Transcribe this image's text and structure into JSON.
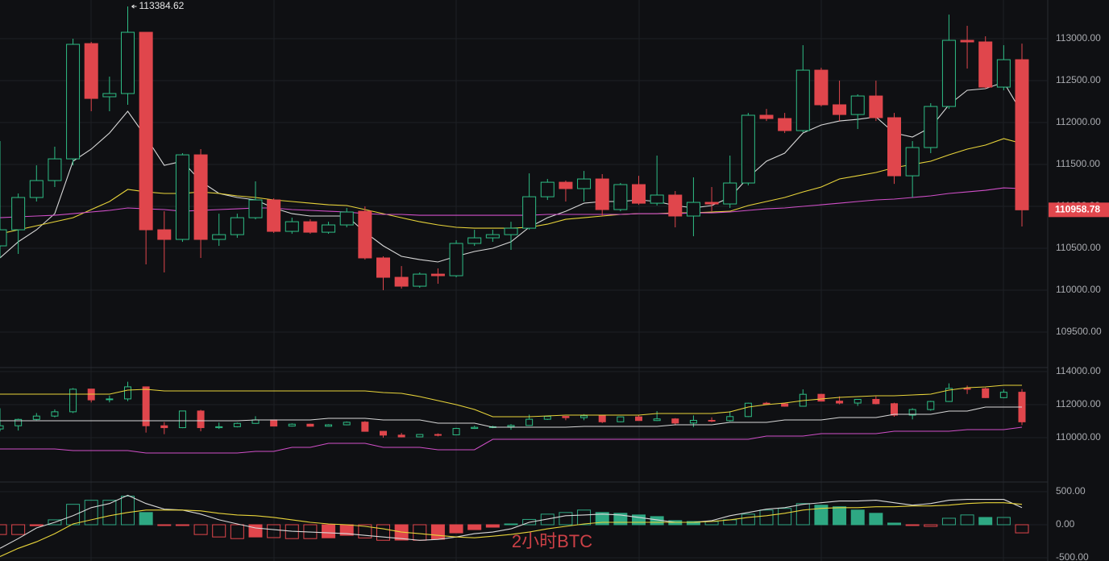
{
  "chart_data": [
    {
      "type": "candlestick",
      "up_color": "#2ebd85",
      "down_color": "#e0464c",
      "grid": true,
      "ylim": [
        109087,
        113462
      ],
      "yticks": [
        {
          "value": 109500,
          "label": "109500.00"
        },
        {
          "value": 110000,
          "label": "110000.00"
        },
        {
          "value": 110500,
          "label": "110500.00"
        },
        {
          "value": 111000,
          "label": "111000.00"
        },
        {
          "value": 111500,
          "label": "111500.00"
        },
        {
          "value": 112000,
          "label": "112000.00"
        },
        {
          "value": 112500,
          "label": "112500.00"
        },
        {
          "value": 113000,
          "label": "113000.00"
        }
      ],
      "open": [
        110529,
        110721,
        111106,
        111308,
        111567,
        112942,
        112308,
        112346,
        113077,
        110721,
        110606,
        111615,
        110606,
        110663,
        110865,
        111077,
        110702,
        110817,
        110692,
        110779,
        110942,
        110385,
        110154,
        110048,
        110192,
        110173,
        110558,
        110625,
        110663,
        110740,
        111115,
        111288,
        111212,
        111327,
        110962,
        111260,
        111038,
        111135,
        110885,
        111048,
        111029,
        111279,
        112087,
        112048,
        111904,
        112625,
        112212,
        112096,
        112317,
        112058,
        111365,
        111702,
        112192,
        112981,
        112962,
        112423,
        112750
      ],
      "high": [
        111779,
        111154,
        111490,
        111712,
        113000,
        112962,
        112548,
        113384.62,
        113077,
        110942,
        111635,
        111683,
        110913,
        110913,
        111298,
        111096,
        110865,
        110846,
        110817,
        110981,
        111000,
        110404,
        110288,
        110212,
        110260,
        110596,
        110721,
        110721,
        110817,
        111394,
        111327,
        111308,
        111423,
        111385,
        111279,
        111365,
        111606,
        111183,
        111346,
        111231,
        111606,
        112115,
        112163,
        112115,
        112923,
        112654,
        112500,
        112337,
        112500,
        112115,
        111779,
        112231,
        113288,
        113154,
        113029,
        112923,
        112942
      ],
      "low": [
        110385,
        110433,
        111058,
        111231,
        111490,
        112135,
        112135,
        112212,
        110308,
        110212,
        110577,
        110385,
        110529,
        110625,
        110846,
        110683,
        110673,
        110673,
        110673,
        110750,
        110365,
        110000,
        110019,
        110029,
        110077,
        110154,
        110529,
        110577,
        110481,
        110721,
        111077,
        111058,
        111058,
        110885,
        110942,
        111019,
        111010,
        110750,
        110644,
        110942,
        110981,
        111250,
        112019,
        111875,
        111885,
        112192,
        112019,
        111923,
        112019,
        111269,
        111106,
        111635,
        112163,
        112644,
        112404,
        112385,
        110760
      ],
      "close": [
        110721,
        111106,
        111308,
        111567,
        112933,
        112288,
        112346,
        113077,
        110721,
        110606,
        111615,
        110606,
        110663,
        110865,
        111077,
        110702,
        110817,
        110692,
        110779,
        110933,
        110385,
        110154,
        110048,
        110192,
        110173,
        110558,
        110625,
        110663,
        110740,
        111115,
        111288,
        111212,
        111327,
        110962,
        111260,
        111038,
        111135,
        110885,
        111048,
        111029,
        111279,
        112087,
        112048,
        111904,
        112625,
        112212,
        112096,
        112317,
        112058,
        111365,
        111702,
        112192,
        112981,
        112962,
        112423,
        112750,
        110958.78
      ],
      "ma_lines": [
        {
          "color": "#d8d8d8",
          "values": [
            110385,
            110577,
            110721,
            110913,
            111539,
            111683,
            111875,
            112135,
            111827,
            111490,
            111539,
            111298,
            111154,
            111106,
            111077,
            110981,
            110913,
            110885,
            110885,
            110885,
            110692,
            110529,
            110404,
            110365,
            110337,
            110404,
            110462,
            110500,
            110577,
            110750,
            110865,
            110942,
            111038,
            111058,
            111058,
            111077,
            111058,
            111010,
            110981,
            111010,
            111106,
            111346,
            111539,
            111635,
            111875,
            111971,
            112019,
            112038,
            112067,
            111875,
            111827,
            111942,
            112212,
            112385,
            112404,
            112481,
            112115
          ]
        },
        {
          "color": "#e8d43a",
          "values": [
            110673,
            110721,
            110769,
            110817,
            110865,
            110962,
            111058,
            111202,
            111173,
            111154,
            111154,
            111173,
            111154,
            111125,
            111106,
            111077,
            111058,
            111038,
            111019,
            111010,
            110962,
            110913,
            110865,
            110817,
            110779,
            110750,
            110740,
            110740,
            110740,
            110750,
            110788,
            110846,
            110865,
            110885,
            110904,
            110913,
            110913,
            110923,
            110923,
            110933,
            110942,
            111010,
            111058,
            111106,
            111173,
            111231,
            111327,
            111365,
            111404,
            111462,
            111500,
            111539,
            111615,
            111683,
            111731,
            111808,
            111750
          ]
        },
        {
          "color": "#d04fc8",
          "values": [
            110865,
            110875,
            110885,
            110894,
            110913,
            110933,
            110952,
            110981,
            110971,
            110962,
            110942,
            110952,
            110962,
            110971,
            110981,
            110981,
            110962,
            110952,
            110942,
            110933,
            110913,
            110904,
            110904,
            110894,
            110894,
            110894,
            110894,
            110894,
            110894,
            110894,
            110904,
            110904,
            110904,
            110904,
            110904,
            110913,
            110913,
            110913,
            110923,
            110923,
            110933,
            110952,
            110971,
            110981,
            111000,
            111019,
            111038,
            111058,
            111077,
            111087,
            111106,
            111125,
            111154,
            111173,
            111192,
            111221,
            111212
          ]
        }
      ]
    },
    {
      "type": "band",
      "ylim": [
        107463,
        114293
      ],
      "yticks": [
        {
          "value": 110000,
          "label": "110000.00"
        },
        {
          "value": 112000,
          "label": "112000.00"
        },
        {
          "value": 114000,
          "label": "114000.00"
        }
      ],
      "lines": [
        {
          "color": "#e8d43a",
          "values": [
            112634,
            112634,
            112634,
            112634,
            112634,
            112634,
            112634,
            112878,
            112927,
            112829,
            112829,
            112829,
            112829,
            112829,
            112829,
            112829,
            112829,
            112829,
            112829,
            112829,
            112829,
            112732,
            112683,
            112488,
            112244,
            112000,
            111707,
            111268,
            111268,
            111268,
            111317,
            111366,
            111366,
            111366,
            111366,
            111366,
            111463,
            111463,
            111463,
            111463,
            111561,
            111854,
            112000,
            112098,
            112244,
            112341,
            112439,
            112488,
            112537,
            112537,
            112585,
            112634,
            112878,
            113024,
            113073,
            113171,
            113171
          ]
        },
        {
          "color": "#d8d8d8",
          "values": [
            111024,
            111024,
            111024,
            111024,
            111024,
            111024,
            111024,
            111024,
            111024,
            111024,
            111024,
            111024,
            111024,
            111024,
            111073,
            111073,
            111073,
            111073,
            111171,
            111171,
            111171,
            111073,
            111073,
            111073,
            110878,
            110878,
            110878,
            110634,
            110634,
            110634,
            110634,
            110634,
            110683,
            110683,
            110683,
            110683,
            110683,
            110780,
            110780,
            110780,
            110927,
            110927,
            110927,
            111073,
            111073,
            111073,
            111220,
            111220,
            111220,
            111415,
            111415,
            111415,
            111610,
            111610,
            111854,
            111854,
            111854
          ]
        },
        {
          "color": "#d04fc8",
          "values": [
            109317,
            109317,
            109317,
            109317,
            109220,
            109220,
            109220,
            109220,
            109073,
            109073,
            109073,
            109073,
            109073,
            109073,
            109171,
            109171,
            109415,
            109415,
            109659,
            109659,
            109659,
            109415,
            109415,
            109415,
            109268,
            109268,
            109268,
            109902,
            109902,
            109902,
            109902,
            109902,
            109902,
            109902,
            109902,
            109902,
            109902,
            109902,
            109902,
            109902,
            109902,
            109902,
            110098,
            110098,
            110098,
            110244,
            110244,
            110244,
            110244,
            110390,
            110390,
            110390,
            110390,
            110488,
            110488,
            110488,
            110634
          ]
        }
      ]
    },
    {
      "type": "macd",
      "ylim": [
        -549,
        622
      ],
      "up_color": "#2ea883",
      "down_color": "#e0464c",
      "yticks": [
        {
          "value": -500,
          "label": "-500.00"
        },
        {
          "value": 0,
          "label": "0.00"
        },
        {
          "value": 500,
          "label": "500.00"
        }
      ],
      "histogram": [
        -148,
        -148,
        -15,
        74,
        309,
        370,
        370,
        432,
        185,
        -12,
        -12,
        -148,
        -185,
        -210,
        -185,
        -195,
        -210,
        -210,
        -198,
        -160,
        -200,
        -235,
        -232,
        -235,
        -220,
        -123,
        -74,
        -37,
        12,
        80,
        160,
        185,
        222,
        185,
        173,
        148,
        123,
        62,
        49,
        49,
        74,
        160,
        222,
        247,
        320,
        296,
        272,
        222,
        173,
        25,
        -12,
        -25,
        98,
        148,
        110,
        110,
        -123
      ],
      "lines": [
        {
          "color": "#d8d8d8",
          "values": [
            -358,
            -210,
            -49,
            37,
            136,
            259,
            321,
            445,
            321,
            235,
            222,
            161,
            74,
            12,
            -49,
            -74,
            -99,
            -111,
            -123,
            -136,
            -161,
            -185,
            -210,
            -235,
            -222,
            -185,
            -136,
            -111,
            -62,
            37,
            86,
            136,
            148,
            161,
            148,
            111,
            74,
            37,
            37,
            62,
            136,
            185,
            235,
            259,
            309,
            333,
            358,
            358,
            371,
            333,
            296,
            321,
            371,
            383,
            383,
            383,
            259
          ]
        },
        {
          "color": "#e8d43a",
          "values": [
            -482,
            -358,
            -259,
            -136,
            12,
            74,
            136,
            185,
            222,
            222,
            222,
            210,
            173,
            148,
            136,
            111,
            74,
            37,
            12,
            0,
            -25,
            -62,
            -111,
            -136,
            -161,
            -185,
            -198,
            -173,
            -148,
            -111,
            -62,
            -25,
            12,
            37,
            37,
            37,
            37,
            37,
            37,
            49,
            74,
            111,
            136,
            173,
            222,
            247,
            259,
            259,
            272,
            272,
            284,
            284,
            296,
            321,
            333,
            333,
            309
          ]
        }
      ]
    }
  ],
  "watermark": "2小时BTC"
}
